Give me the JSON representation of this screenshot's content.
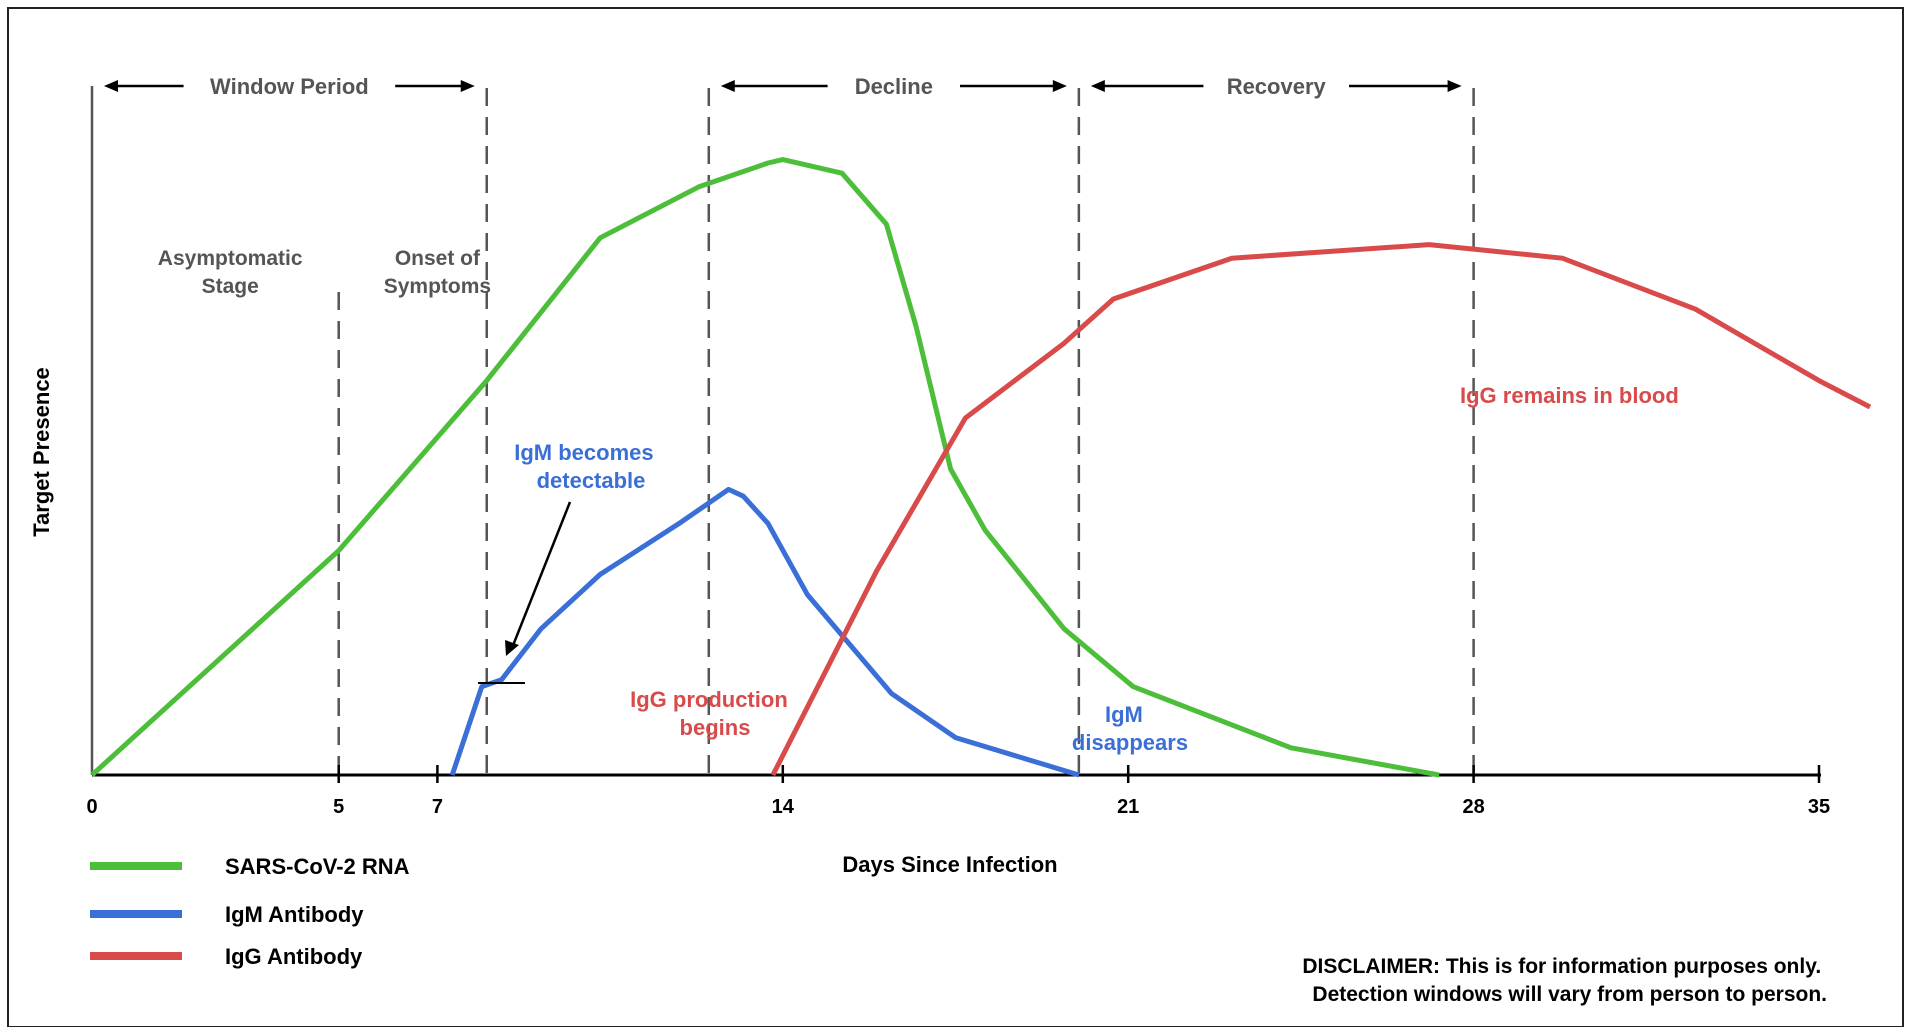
{
  "chart_data": {
    "type": "line",
    "xlabel": "Days Since Infection",
    "ylabel": "Target Presence",
    "xlim": [
      0,
      35
    ],
    "ylim": [
      0,
      100
    ],
    "x_ticks": [
      0,
      5,
      7,
      14,
      21,
      28,
      35
    ],
    "grid": false,
    "legend_position": "bottom-left",
    "series": [
      {
        "name": "SARS-CoV-2 RNA",
        "color": "#4cbe3a",
        "points": [
          [
            0,
            0
          ],
          [
            5,
            33
          ],
          [
            8,
            58
          ],
          [
            10.3,
            79
          ],
          [
            12.3,
            86.5
          ],
          [
            13.7,
            90
          ],
          [
            14,
            90.5
          ],
          [
            15.2,
            88.5
          ],
          [
            16.1,
            81
          ],
          [
            16.7,
            66
          ],
          [
            17.4,
            45
          ],
          [
            18.1,
            36
          ],
          [
            19.7,
            21.5
          ],
          [
            21.1,
            13
          ],
          [
            24.3,
            4
          ],
          [
            27.3,
            0
          ]
        ]
      },
      {
        "name": "IgM Antibody",
        "color": "#3a6fd8",
        "points": [
          [
            7.3,
            0
          ],
          [
            7.9,
            13
          ],
          [
            8.3,
            14
          ],
          [
            9.1,
            21.5
          ],
          [
            10.3,
            29.5
          ],
          [
            11.9,
            37
          ],
          [
            12.9,
            42
          ],
          [
            13.2,
            41
          ],
          [
            13.7,
            37
          ],
          [
            14.5,
            26.5
          ],
          [
            16.2,
            12
          ],
          [
            17.5,
            5.5
          ],
          [
            20,
            0
          ]
        ]
      },
      {
        "name": "IgG Antibody",
        "color": "#d94b4b",
        "points": [
          [
            13.8,
            0
          ],
          [
            15.9,
            30
          ],
          [
            17.7,
            52.5
          ],
          [
            19.7,
            63.5
          ],
          [
            20.7,
            70
          ],
          [
            23.1,
            76
          ],
          [
            27.1,
            78
          ],
          [
            29.8,
            76
          ],
          [
            32.5,
            68.5
          ],
          [
            35,
            58
          ],
          [
            36.6,
            52
          ]
        ]
      }
    ],
    "phases": [
      {
        "label": "Window Period",
        "from": 0,
        "to": 8
      },
      {
        "label": "Decline",
        "from": 12.5,
        "to": 20
      },
      {
        "label": "Recovery",
        "from": 20,
        "to": 28
      }
    ],
    "dashed_lines": [
      5,
      8,
      12.5,
      20,
      28
    ],
    "stages": [
      {
        "lines": [
          "Asymptomatic",
          "Stage"
        ],
        "x": 2.8
      },
      {
        "lines": [
          "Onset of",
          "Symptoms"
        ],
        "x": 7
      }
    ],
    "annotations": [
      {
        "lines": [
          "IgM becomes",
          "detectable"
        ],
        "color": "#3a6fd8"
      },
      {
        "lines": [
          "IgG production",
          "begins"
        ],
        "color": "#d94b4b"
      },
      {
        "lines": [
          "IgM",
          "disappears"
        ],
        "color": "#3a6fd8"
      },
      {
        "lines": [
          "IgG remains in blood"
        ],
        "color": "#d94b4b"
      }
    ],
    "disclaimer": [
      "DISCLAIMER: This is for information purposes only.",
      "Detection windows will vary from person to person."
    ]
  }
}
